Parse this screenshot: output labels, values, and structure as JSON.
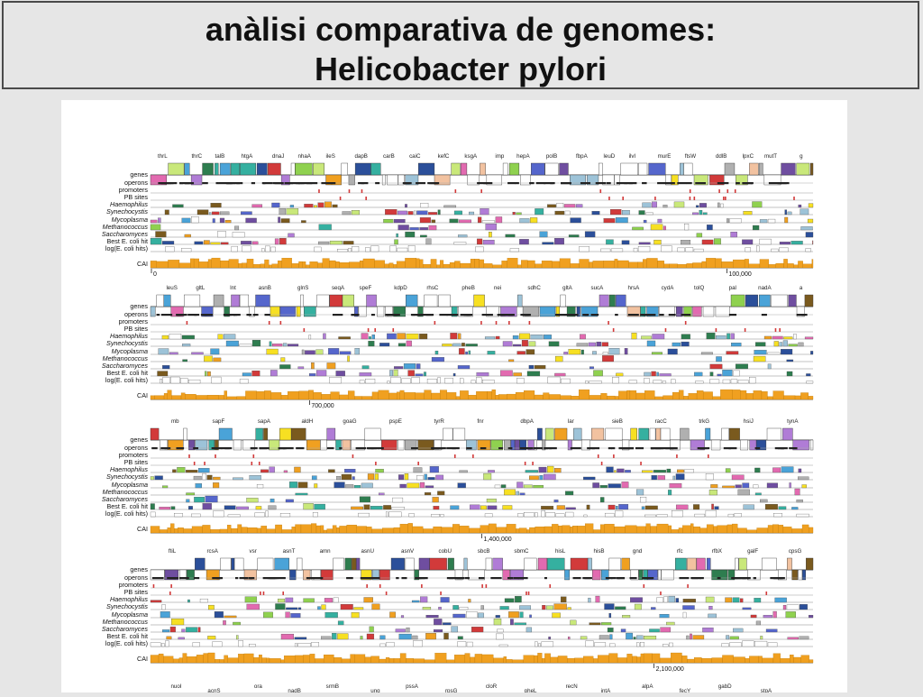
{
  "slide": {
    "title_line1": "anàlisi comparativa de genomes:",
    "title_line2": "Helicobacter pylori"
  },
  "track_labels": [
    {
      "text": "genes",
      "italic": false
    },
    {
      "text": "operons",
      "italic": false
    },
    {
      "text": "promoters",
      "italic": false
    },
    {
      "text": "PB sites",
      "italic": false
    },
    {
      "text": "Haemophilus",
      "italic": true
    },
    {
      "text": "Synechocystis",
      "italic": true
    },
    {
      "text": "Mycoplasma",
      "italic": true
    },
    {
      "text": "Methanococcus",
      "italic": true
    },
    {
      "text": "Saccharomyces",
      "italic": true
    },
    {
      "text": "Best E. coli hit",
      "italic": false
    },
    {
      "text": "log(E. coli hits)",
      "italic": false
    },
    {
      "text": "CAI",
      "italic": false
    }
  ],
  "panels": [
    {
      "genes": [
        "thrL",
        "thrC",
        "talB",
        "htgA",
        "dnaJ",
        "nhaA",
        "ileS",
        "dapB",
        "carB",
        "caiC",
        "kefC",
        "ksgA",
        "imp",
        "hepA",
        "polB",
        "fbpA",
        "leuD",
        "ilvI",
        "murE",
        "ftsW",
        "ddlB",
        "lpxC",
        "mutT",
        "g"
      ],
      "scale_marks": [
        "0",
        "100,000"
      ]
    },
    {
      "genes": [
        "leuS",
        "gltL",
        "lnt",
        "asnB",
        "glnS",
        "seqA",
        "speF",
        "kdpD",
        "rhsC",
        "pheB",
        "nei",
        "sdhC",
        "gltA",
        "sucA",
        "hrsA",
        "cydA",
        "tolQ",
        "pal",
        "nadA",
        "a"
      ],
      "scale_marks": [
        "700,000"
      ]
    },
    {
      "genes": [
        "mb",
        "sapF",
        "sapA",
        "aldH",
        "goaG",
        "pspE",
        "tyrR",
        "fnr",
        "dbpA",
        "lar",
        "sieB",
        "racC",
        "trkG",
        "hsiJ",
        "tynA"
      ],
      "scale_marks": [
        "1,400,000"
      ]
    },
    {
      "genes": [
        "ftiL",
        "rcsA",
        "vsr",
        "asnT",
        "amn",
        "asnU",
        "asnV",
        "cobU",
        "sbcB",
        "sbmC",
        "hisL",
        "hisB",
        "gnd",
        "rfc",
        "rfbX",
        "galF",
        "cpsG"
      ],
      "scale_marks": [
        "2,100,000"
      ]
    }
  ],
  "bottom_genes": [
    "nuoI",
    "acnS",
    "ora",
    "nadB",
    "srmB",
    "ung",
    "pssA",
    "rpsG",
    "cloR",
    "pheL",
    "recN",
    "intA",
    "alpA",
    "fecY",
    "gabD",
    "stpA"
  ],
  "palette": [
    "#9dc3d8",
    "#b07cd6",
    "#8fd14f",
    "#2e7d4f",
    "#f0a020",
    "#4aa3d8",
    "#d23a3a",
    "#7a5a1e",
    "#f7e022",
    "#5566cc",
    "#e26ab0",
    "#35b0a0",
    "#b0b0b0",
    "#ffffff",
    "#6f4ea0",
    "#c9e87a",
    "#2b4f9a",
    "#f2c2a0"
  ],
  "colors": {
    "cai": "#f0a020",
    "cai_edge": "#b87400",
    "line": "#555555",
    "red_mark": "#d23a3a",
    "title_border": "#4a4a4a",
    "slide_bg": "#e6e6e6"
  }
}
